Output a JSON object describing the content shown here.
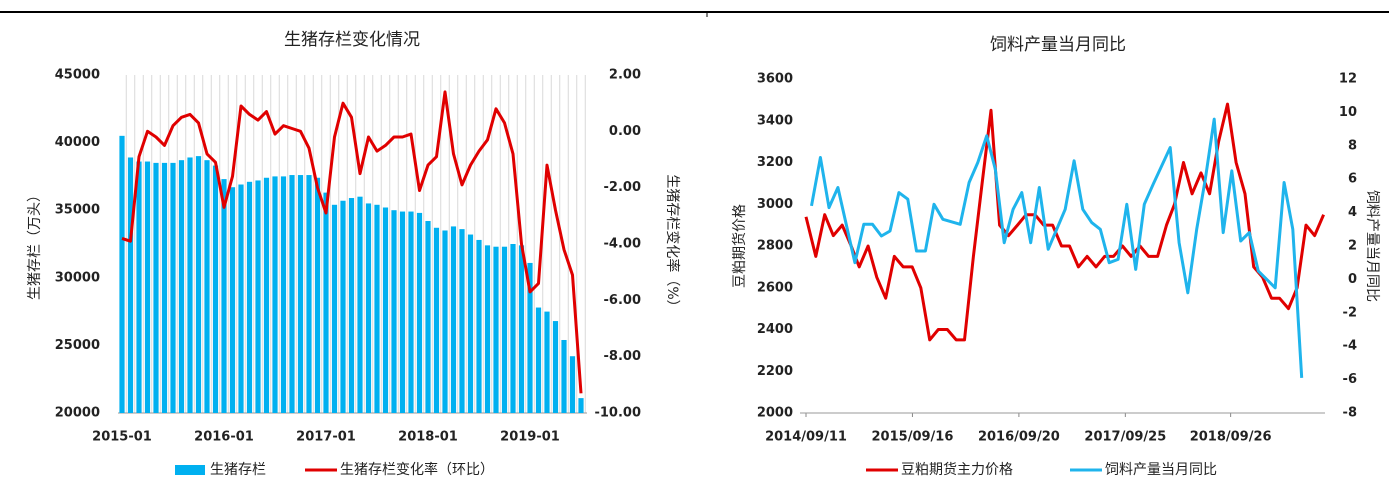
{
  "chart_data": [
    {
      "type": "combo",
      "title": "生猪存栏变化情况",
      "categories": [
        "2015-01",
        null,
        null,
        null,
        null,
        null,
        null,
        null,
        null,
        null,
        null,
        null,
        "2016-01",
        null,
        null,
        null,
        null,
        null,
        null,
        null,
        null,
        null,
        null,
        null,
        "2017-01",
        null,
        null,
        null,
        null,
        null,
        null,
        null,
        null,
        null,
        null,
        null,
        "2018-01",
        null,
        null,
        null,
        null,
        null,
        null,
        null,
        null,
        null,
        null,
        null,
        "2019-01",
        null,
        null,
        null,
        null,
        null,
        null
      ],
      "series": [
        {
          "name": "生猪存栏",
          "type": "bar",
          "color": "#00b0f0",
          "values": [
            40500,
            38900,
            38600,
            38600,
            38500,
            38500,
            38500,
            38700,
            38900,
            39000,
            38700,
            38300,
            37300,
            36700,
            36900,
            37100,
            37200,
            37400,
            37500,
            37500,
            37600,
            37600,
            37600,
            37400,
            36300,
            35400,
            35700,
            35900,
            36000,
            35500,
            35400,
            35200,
            35000,
            34900,
            34900,
            34800,
            34200,
            33700,
            33500,
            33800,
            33600,
            33200,
            32800,
            32400,
            32300,
            32300,
            32500,
            32400,
            31100,
            27800,
            27500,
            26800,
            25400,
            24200,
            21100
          ]
        },
        {
          "name": "生猪存栏变化率（环比）",
          "type": "line",
          "color": "#e00000",
          "axis": "y2",
          "values": [
            -3.8,
            -3.9,
            -0.9,
            0.0,
            -0.2,
            -0.5,
            0.2,
            0.5,
            0.6,
            0.3,
            -0.8,
            -1.1,
            -2.7,
            -1.6,
            0.9,
            0.6,
            0.4,
            0.7,
            -0.1,
            0.2,
            0.1,
            0.0,
            -0.6,
            -2.0,
            -2.9,
            -0.2,
            1.0,
            0.5,
            -1.5,
            -0.2,
            -0.7,
            -0.5,
            -0.2,
            -0.2,
            -0.1,
            -2.1,
            -1.2,
            -0.9,
            1.4,
            -0.8,
            -1.9,
            -1.2,
            -0.7,
            -0.3,
            0.8,
            0.3,
            -0.8,
            -4.0,
            -5.7,
            -5.4,
            -1.2,
            -2.8,
            -4.2,
            -5.1,
            -9.3
          ]
        }
      ],
      "ylabel": "生猪存栏（万头）",
      "y2label": "生猪存栏变化率（%）",
      "ylim": [
        20000,
        45000
      ],
      "yticks": [
        20000,
        25000,
        30000,
        35000,
        40000,
        45000
      ],
      "y2lim": [
        -10,
        2
      ],
      "y2ticks": [
        {
          "value": -10,
          "label": "-10.00"
        },
        {
          "value": -8,
          "label": "-8.00"
        },
        {
          "value": -6,
          "label": "-6.00"
        },
        {
          "value": -4,
          "label": "-4.00"
        },
        {
          "value": -2,
          "label": "-2.00"
        },
        {
          "value": 0,
          "label": "0.00"
        },
        {
          "value": 2,
          "label": "2.00"
        }
      ],
      "grid": true,
      "legend": "bottom"
    },
    {
      "type": "line",
      "title": "饲料产量当月同比",
      "xlim": [
        "2014/09/11",
        "2019/08/20"
      ],
      "xticks": [
        "2014/09/11",
        "2015/09/16",
        "2016/09/20",
        "2017/09/25",
        "2018/09/26"
      ],
      "series": [
        {
          "name": "豆粕期货主力价格",
          "color": "#e00000",
          "x": [
            "2014/09/11",
            "2014/10/15",
            "2014/11/15",
            "2014/12/15",
            "2015/01/15",
            "2015/02/15",
            "2015/03/15",
            "2015/04/15",
            "2015/05/15",
            "2015/06/15",
            "2015/07/15",
            "2015/08/15",
            "2015/09/15",
            "2015/10/15",
            "2015/11/15",
            "2015/12/15",
            "2016/01/15",
            "2016/02/15",
            "2016/03/15",
            "2016/04/15",
            "2016/05/15",
            "2016/06/15",
            "2016/07/15",
            "2016/08/15",
            "2016/09/15",
            "2016/10/15",
            "2016/11/15",
            "2016/12/15",
            "2017/01/15",
            "2017/02/15",
            "2017/03/15",
            "2017/04/15",
            "2017/05/15",
            "2017/06/15",
            "2017/07/15",
            "2017/08/15",
            "2017/09/15",
            "2017/10/15",
            "2017/11/15",
            "2017/12/15",
            "2018/01/15",
            "2018/02/15",
            "2018/03/15",
            "2018/04/15",
            "2018/05/15",
            "2018/06/15",
            "2018/07/15",
            "2018/08/15",
            "2018/09/15",
            "2018/10/15",
            "2018/11/15",
            "2018/12/15",
            "2019/01/15",
            "2019/02/15",
            "2019/03/15",
            "2019/04/15",
            "2019/05/15",
            "2019/06/15",
            "2019/07/15",
            "2019/08/15"
          ],
          "values": [
            2940,
            2750,
            2950,
            2850,
            2900,
            2800,
            2700,
            2800,
            2650,
            2550,
            2750,
            2700,
            2700,
            2600,
            2350,
            2400,
            2400,
            2350,
            2350,
            2750,
            3100,
            3450,
            2900,
            2850,
            2900,
            2950,
            2950,
            2900,
            2900,
            2800,
            2800,
            2700,
            2750,
            2700,
            2750,
            2750,
            2800,
            2750,
            2800,
            2750,
            2750,
            2900,
            3000,
            3200,
            3050,
            3150,
            3050,
            3300,
            3480,
            3200,
            3050,
            2700,
            2650,
            2550,
            2550,
            2500,
            2600,
            2900,
            2850,
            2950
          ]
        },
        {
          "name": "饲料产量当月同比",
          "color": "#1fb4ec",
          "axis": "y2",
          "x": [
            "2014/09/30",
            "2014/10/31",
            "2014/11/30",
            "2014/12/31",
            "2015/02/28",
            "2015/03/31",
            "2015/04/30",
            "2015/05/31",
            "2015/06/30",
            "2015/07/31",
            "2015/08/31",
            "2015/09/30",
            "2015/10/31",
            "2015/11/30",
            "2015/12/31",
            "2016/02/29",
            "2016/03/31",
            "2016/04/30",
            "2016/05/31",
            "2016/06/30",
            "2016/07/31",
            "2016/08/31",
            "2016/09/30",
            "2016/10/31",
            "2016/11/30",
            "2016/12/31",
            "2017/02/28",
            "2017/03/31",
            "2017/04/30",
            "2017/05/31",
            "2017/06/30",
            "2017/07/31",
            "2017/08/31",
            "2017/09/30",
            "2017/10/31",
            "2017/11/30",
            "2017/12/31",
            "2018/02/28",
            "2018/03/31",
            "2018/04/30",
            "2018/05/31",
            "2018/06/30",
            "2018/07/31",
            "2018/08/31",
            "2018/09/30",
            "2018/10/31",
            "2018/11/30",
            "2018/12/31",
            "2019/02/28",
            "2019/03/31",
            "2019/04/30",
            "2019/05/31"
          ],
          "values": [
            4.4,
            7.3,
            4.3,
            5.5,
            1.0,
            3.3,
            3.3,
            2.6,
            2.9,
            5.2,
            4.8,
            1.7,
            1.7,
            4.5,
            3.6,
            3.3,
            5.8,
            7.0,
            8.6,
            6.6,
            2.2,
            4.2,
            5.2,
            2.2,
            5.5,
            1.8,
            4.2,
            7.1,
            4.2,
            3.4,
            3.0,
            1.0,
            1.2,
            4.5,
            0.6,
            4.5,
            5.7,
            7.9,
            2.2,
            -0.8,
            3.0,
            6.0,
            9.6,
            2.8,
            6.5,
            2.3,
            2.8,
            0.5,
            -0.5,
            5.8,
            3.0,
            -5.9
          ]
        }
      ],
      "ylabel": "豆粕期货价格",
      "y2label": "饲料产量当月同比",
      "ylim": [
        2000,
        3600
      ],
      "yticks": [
        2000,
        2200,
        2400,
        2600,
        2800,
        3000,
        3200,
        3400,
        3600
      ],
      "y2lim": [
        -8,
        12
      ],
      "y2ticks": [
        -8,
        -6,
        -4,
        -2,
        0,
        2,
        4,
        6,
        8,
        10,
        12
      ],
      "grid": false,
      "legend": "bottom"
    }
  ]
}
